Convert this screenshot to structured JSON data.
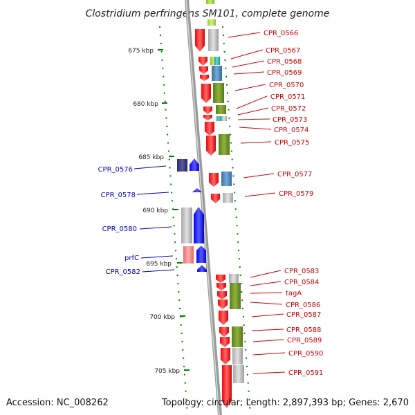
{
  "title": "Clostridium perfringens SM101, complete genome",
  "footer": {
    "accession": "Accession: NC_008262",
    "summary": "Topology: circular; Length: 2,897,393 bp; Genes: 2,670"
  },
  "colors": {
    "plus_label": "#cc0000",
    "minus_label": "#0000bb",
    "cds_plus": "#ff0000",
    "cds_minus": "#0000ff",
    "olive": "#6b8e23",
    "steel_blue": "#4682b4",
    "gray": "#b0b0b0",
    "navy": "#2f2f6f",
    "salmon": "#f08080",
    "yellow_green": "#9acd32",
    "teal": "#20b2aa",
    "tick_green": "#008000",
    "backbone": "#888888"
  },
  "kbp_ticks": [
    {
      "label": "675 kbp"
    },
    {
      "label": "680 kbp"
    },
    {
      "label": "685 kbp"
    },
    {
      "label": "690 kbp"
    },
    {
      "label": "695 kbp"
    },
    {
      "label": "700 kbp"
    },
    {
      "label": "705 kbp"
    }
  ],
  "plus_labels": [
    {
      "text": "CPR_0566"
    },
    {
      "text": "CPR_0567"
    },
    {
      "text": "CPR_0568"
    },
    {
      "text": "CPR_0569"
    },
    {
      "text": "CPR_0570"
    },
    {
      "text": "CPR_0571"
    },
    {
      "text": "CPR_0572"
    },
    {
      "text": "CPR_0573"
    },
    {
      "text": "CPR_0574"
    },
    {
      "text": "CPR_0575"
    },
    {
      "text": "CPR_0577"
    },
    {
      "text": "CPR_0579"
    },
    {
      "text": "CPR_0583"
    },
    {
      "text": "CPR_0584"
    },
    {
      "text": "tagA"
    },
    {
      "text": "CPR_0586"
    },
    {
      "text": "CPR_0587"
    },
    {
      "text": "CPR_0588"
    },
    {
      "text": "CPR_0589"
    },
    {
      "text": "CPR_0590"
    },
    {
      "text": "CPR_0591"
    }
  ],
  "minus_labels": [
    {
      "text": "CPR_0576"
    },
    {
      "text": "CPR_0578"
    },
    {
      "text": "CPR_0580"
    },
    {
      "text": "prfC"
    },
    {
      "text": "CPR_0582"
    }
  ]
}
